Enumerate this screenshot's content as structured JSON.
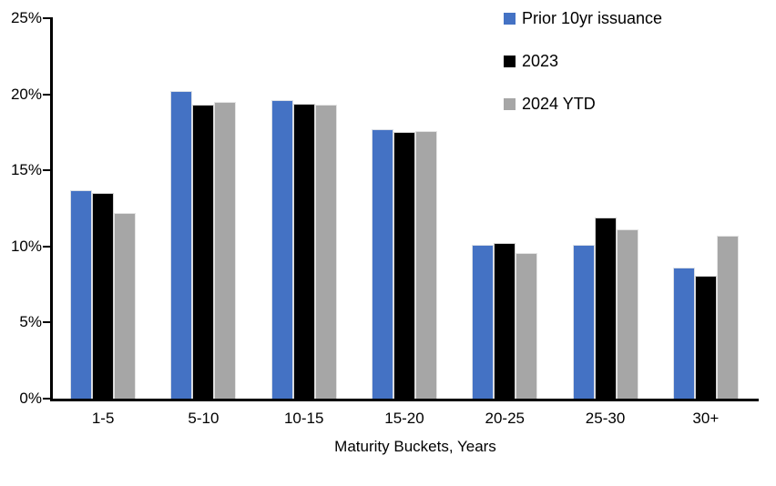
{
  "chart_data": {
    "type": "bar",
    "title": "",
    "xlabel": "Maturity Buckets, Years",
    "ylabel": "",
    "categories": [
      "1-5",
      "5-10",
      "10-15",
      "15-20",
      "20-25",
      "25-30",
      "30+"
    ],
    "series": [
      {
        "name": "Prior 10yr issuance",
        "slug": "prior-10yr-issuance",
        "color": "#4472C4",
        "values": [
          13.7,
          20.2,
          19.6,
          17.7,
          10.1,
          10.1,
          8.6
        ]
      },
      {
        "name": "2023",
        "slug": "2023",
        "color": "#000000",
        "values": [
          13.5,
          19.3,
          19.4,
          17.5,
          10.2,
          11.9,
          8.1
        ]
      },
      {
        "name": "2024 YTD",
        "slug": "2024-ytd",
        "color": "#A6A6A6",
        "values": [
          12.2,
          19.5,
          19.3,
          17.6,
          9.6,
          11.1,
          10.7
        ]
      }
    ],
    "ylim": [
      0,
      25
    ],
    "y_ticks": [
      {
        "value": 0,
        "label": "0%"
      },
      {
        "value": 5,
        "label": "5%"
      },
      {
        "value": 10,
        "label": "10%"
      },
      {
        "value": 15,
        "label": "15%"
      },
      {
        "value": 20,
        "label": "20%"
      },
      {
        "value": 25,
        "label": "25%"
      }
    ],
    "grid": false,
    "legend_position": "top-right",
    "axis_color": "#000000",
    "background": "#FFFFFF"
  }
}
